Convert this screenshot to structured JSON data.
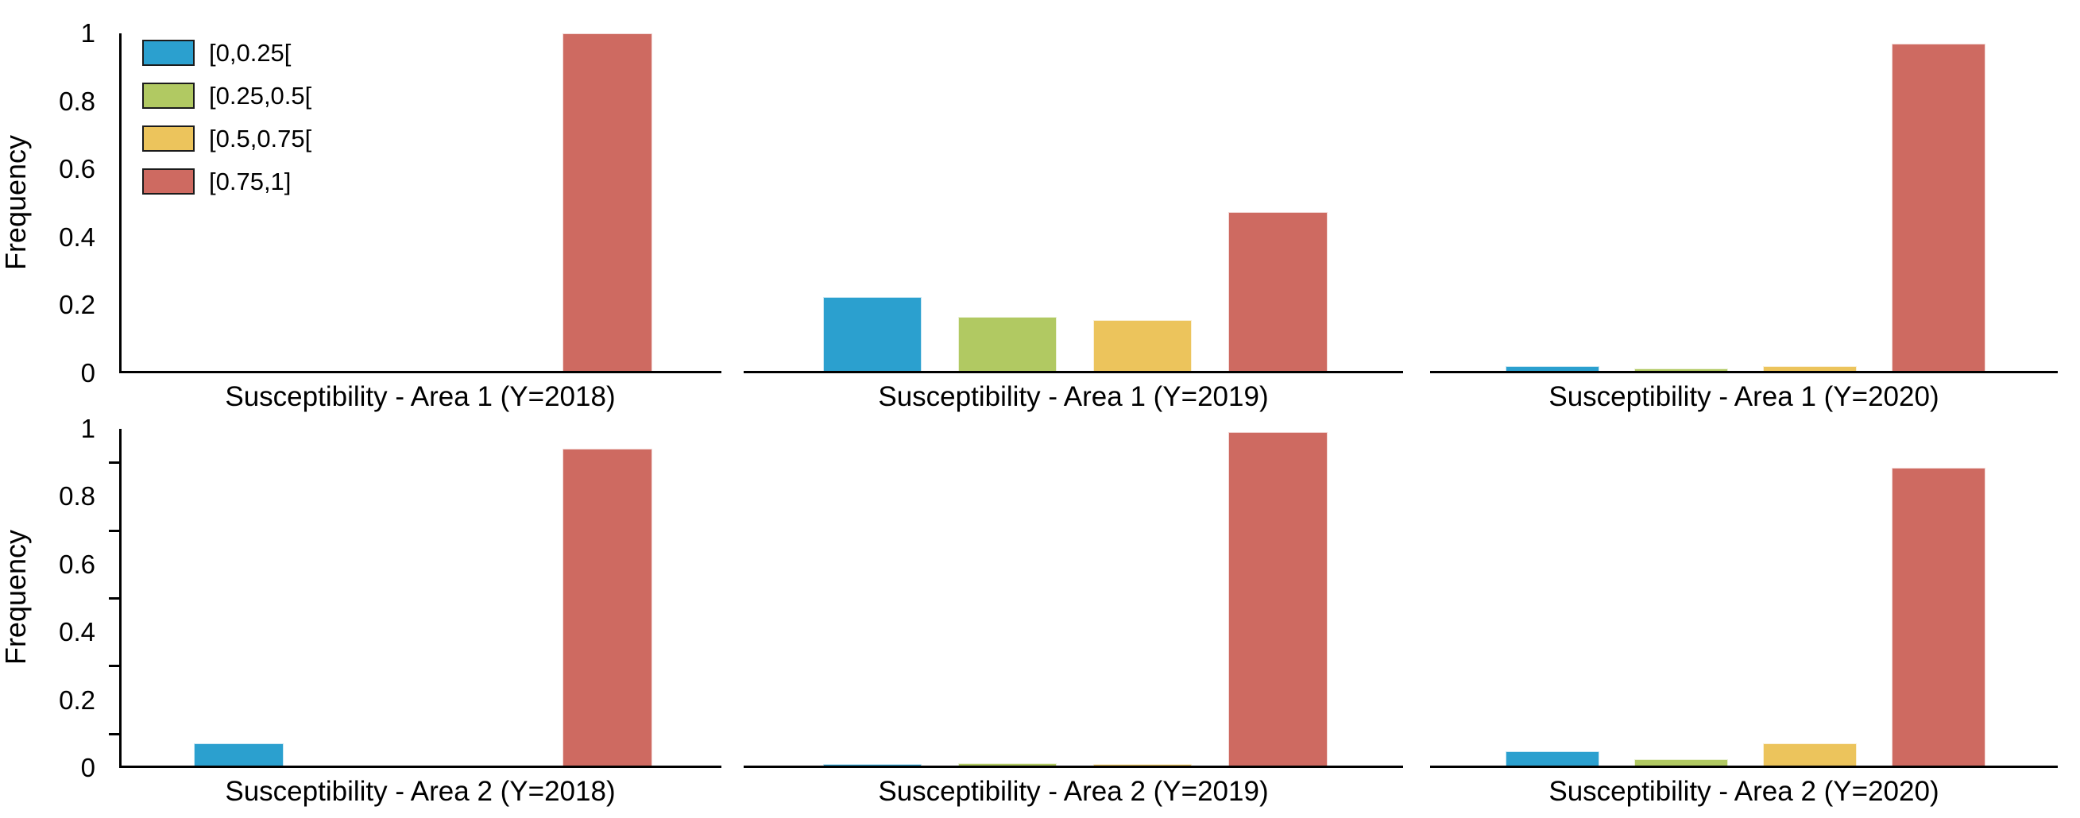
{
  "figure": {
    "ylabel": "Frequency",
    "yticks": [
      "0",
      "0.2",
      "0.4",
      "0.6",
      "0.8",
      "1"
    ],
    "ytick_values": [
      0,
      0.2,
      0.4,
      0.6,
      0.8,
      1
    ],
    "minor_tick_values": [
      0.1,
      0.3,
      0.5,
      0.7,
      0.9
    ],
    "background_color": "#ffffff",
    "axis_color": "#000000"
  },
  "legend": {
    "position": "upper-left-first-panel",
    "entries": [
      {
        "label": "[0,0.25[",
        "color": "#2BA0CF"
      },
      {
        "label": "[0.25,0.5[",
        "color": "#B1C962"
      },
      {
        "label": "[0.5,0.75[",
        "color": "#ECC45C"
      },
      {
        "label": "[0.75,1]",
        "color": "#CE6A61"
      }
    ]
  },
  "chart_data": [
    {
      "type": "bar",
      "row": 0,
      "col": 0,
      "xlabel": "Susceptibility - Area 1 (Y=2018)",
      "ylabel": "Frequency",
      "ylim": [
        0,
        1
      ],
      "grid": false,
      "categories": [
        "[0,0.25[",
        "[0.25,0.5[",
        "[0.5,0.75[",
        "[0.75,1]"
      ],
      "values": [
        0,
        0,
        0,
        1.0
      ],
      "show_legend": true,
      "show_y_axis": true,
      "show_y_minor_ticks": false
    },
    {
      "type": "bar",
      "row": 0,
      "col": 1,
      "xlabel": "Susceptibility - Area 1 (Y=2019)",
      "ylabel": "",
      "ylim": [
        0,
        1
      ],
      "grid": false,
      "categories": [
        "[0,0.25[",
        "[0.25,0.5[",
        "[0.5,0.75[",
        "[0.75,1]"
      ],
      "values": [
        0.22,
        0.16,
        0.15,
        0.47
      ],
      "show_legend": false,
      "show_y_axis": false,
      "show_y_minor_ticks": false
    },
    {
      "type": "bar",
      "row": 0,
      "col": 2,
      "xlabel": "Susceptibility - Area 1 (Y=2020)",
      "ylabel": "",
      "ylim": [
        0,
        1
      ],
      "grid": false,
      "categories": [
        "[0,0.25[",
        "[0.25,0.5[",
        "[0.5,0.75[",
        "[0.75,1]"
      ],
      "values": [
        0.013,
        0.006,
        0.013,
        0.97
      ],
      "show_legend": false,
      "show_y_axis": false,
      "show_y_minor_ticks": false
    },
    {
      "type": "bar",
      "row": 1,
      "col": 0,
      "xlabel": "Susceptibility - Area 2 (Y=2018)",
      "ylabel": "Frequency",
      "ylim": [
        0,
        1
      ],
      "grid": false,
      "categories": [
        "[0,0.25[",
        "[0.25,0.5[",
        "[0.5,0.75[",
        "[0.75,1]"
      ],
      "values": [
        0.065,
        0,
        0,
        0.94
      ],
      "show_legend": false,
      "show_y_axis": true,
      "show_y_minor_ticks": true
    },
    {
      "type": "bar",
      "row": 1,
      "col": 1,
      "xlabel": "Susceptibility - Area 2 (Y=2019)",
      "ylabel": "",
      "ylim": [
        0,
        1
      ],
      "grid": false,
      "categories": [
        "[0,0.25[",
        "[0.25,0.5[",
        "[0.5,0.75[",
        "[0.75,1]"
      ],
      "values": [
        0.005,
        0.008,
        0.005,
        0.99
      ],
      "show_legend": false,
      "show_y_axis": false,
      "show_y_minor_ticks": false
    },
    {
      "type": "bar",
      "row": 1,
      "col": 2,
      "xlabel": "Susceptibility - Area 2 (Y=2020)",
      "ylabel": "",
      "ylim": [
        0,
        1
      ],
      "grid": false,
      "categories": [
        "[0,0.25[",
        "[0.25,0.5[",
        "[0.5,0.75[",
        "[0.75,1]"
      ],
      "values": [
        0.042,
        0.02,
        0.066,
        0.885
      ],
      "show_legend": false,
      "show_y_axis": false,
      "show_y_minor_ticks": false
    }
  ]
}
